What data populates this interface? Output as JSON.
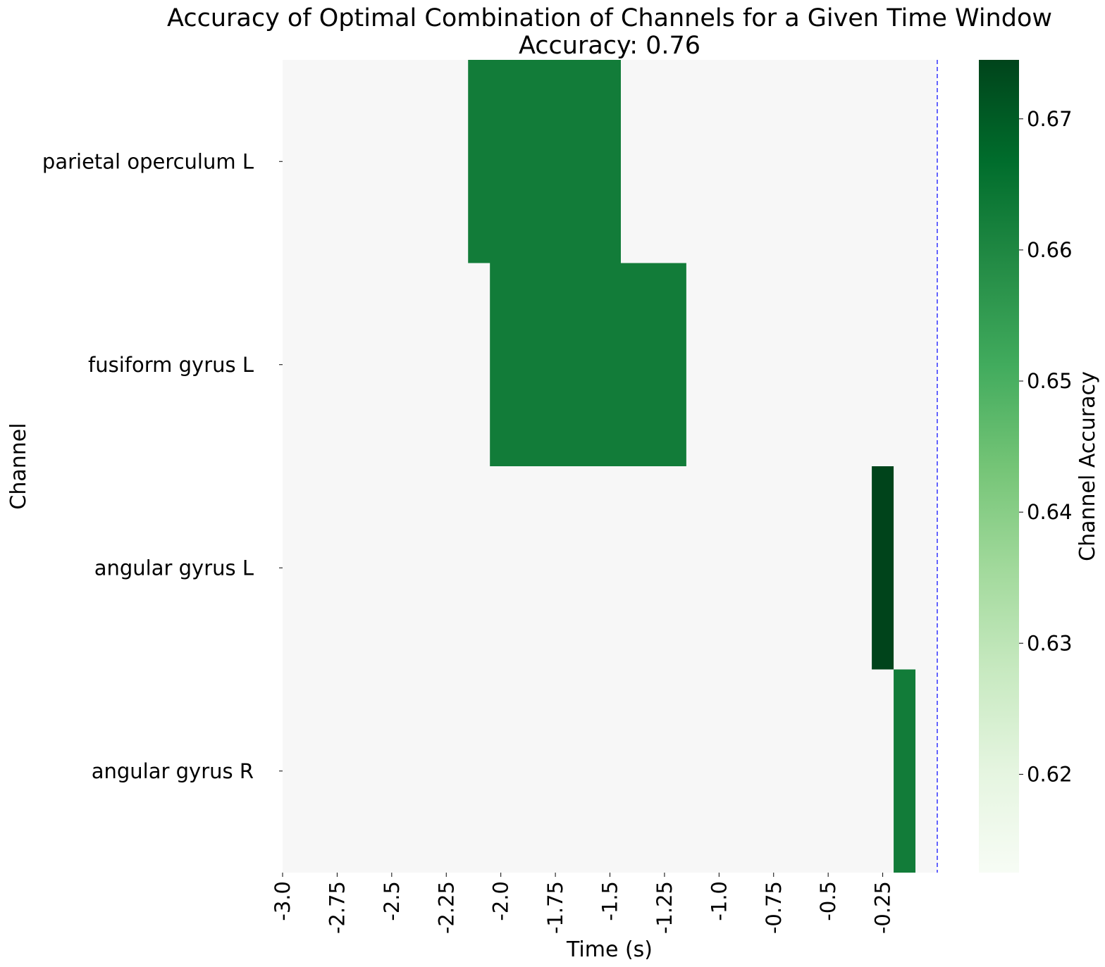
{
  "chart_data": {
    "type": "heatmap",
    "title": "Accuracy of Optimal Combination of Channels for a Given Time Window",
    "subtitle": "Accuracy: 0.76",
    "xlabel": "Time (s)",
    "ylabel": "Channel",
    "colorbar_label": "Channel Accuracy",
    "rows": [
      "parietal operculum L",
      "fusiform gyrus L",
      "angular gyrus L",
      "angular gyrus R"
    ],
    "x_range": [
      -3.0,
      0.0
    ],
    "x_tick_values": [
      -3.0,
      -2.75,
      -2.5,
      -2.25,
      -2.0,
      -1.75,
      -1.5,
      -1.25,
      -1.0,
      -0.75,
      -0.5,
      -0.25
    ],
    "x_tick_labels": [
      "-3.0",
      "-2.75",
      "-2.5",
      "-2.25",
      "-2.0",
      "-1.75",
      "-1.5",
      "-1.25",
      "-1.0",
      "-0.75",
      "-0.5",
      "-0.25"
    ],
    "background_color": "#f7f7f7",
    "segments": [
      {
        "row": "parietal operculum L",
        "x_start": -2.15,
        "x_end": -1.45,
        "value": 0.6628
      },
      {
        "row": "fusiform gyrus L",
        "x_start": -2.05,
        "x_end": -1.15,
        "value": 0.6628
      },
      {
        "row": "angular gyrus L",
        "x_start": -0.3,
        "x_end": -0.2,
        "value": 0.6745
      },
      {
        "row": "angular gyrus R",
        "x_start": -0.2,
        "x_end": -0.1,
        "value": 0.6628
      }
    ],
    "reference_line": {
      "x": 0.0,
      "color": "#0000ff",
      "style": "dashed"
    },
    "colorbar": {
      "range": [
        0.6125,
        0.6745
      ],
      "ticks": [
        0.62,
        0.63,
        0.64,
        0.65,
        0.66,
        0.67
      ],
      "tick_labels": [
        "0.62",
        "0.63",
        "0.64",
        "0.65",
        "0.66",
        "0.67"
      ],
      "colormap": "Greens",
      "stops": [
        "#f7fcf5",
        "#e5f5e0",
        "#c7e9c0",
        "#a1d99b",
        "#74c476",
        "#41ab5d",
        "#238b45",
        "#006d2c",
        "#00441b"
      ]
    }
  }
}
